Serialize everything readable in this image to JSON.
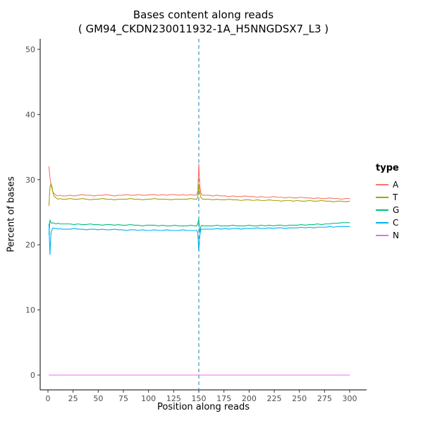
{
  "chart_data": {
    "type": "line",
    "title": "Bases content along reads",
    "subtitle": "( GM94_CKDN230011932-1A_H5NNGDSX7_L3 )",
    "xlabel": "Position along reads",
    "ylabel": "Percent of bases",
    "legend_title": "type",
    "legend_position": "right",
    "grid": false,
    "xlim": [
      0,
      300
    ],
    "ylim": [
      0,
      52
    ],
    "xticks": [
      0,
      25,
      50,
      75,
      100,
      125,
      150,
      175,
      200,
      225,
      250,
      275,
      300
    ],
    "yticks": [
      0,
      10,
      20,
      30,
      40,
      50
    ],
    "vline": {
      "x": 150,
      "style": "dashed",
      "color": "#4393C3"
    },
    "x": [
      1,
      2,
      3,
      4,
      5,
      6,
      8,
      10,
      12,
      14,
      18,
      22,
      26,
      30,
      34,
      38,
      42,
      46,
      50,
      54,
      58,
      62,
      66,
      70,
      74,
      78,
      82,
      86,
      90,
      94,
      98,
      102,
      106,
      110,
      114,
      118,
      122,
      126,
      130,
      134,
      138,
      142,
      146,
      148,
      149,
      150,
      151,
      152,
      153,
      154,
      156,
      160,
      164,
      168,
      172,
      176,
      180,
      184,
      188,
      192,
      196,
      200,
      204,
      208,
      212,
      216,
      220,
      224,
      228,
      232,
      236,
      240,
      244,
      248,
      252,
      256,
      260,
      264,
      268,
      272,
      276,
      280,
      284,
      288,
      292,
      296,
      300
    ],
    "series": [
      {
        "name": "A",
        "color": "#F8766D",
        "y": [
          32.0,
          30.3,
          29.2,
          28.6,
          28.1,
          27.9,
          27.6,
          27.5,
          27.6,
          27.5,
          27.5,
          27.6,
          27.5,
          27.6,
          27.7,
          27.6,
          27.6,
          27.5,
          27.6,
          27.6,
          27.7,
          27.6,
          27.5,
          27.6,
          27.6,
          27.7,
          27.6,
          27.6,
          27.7,
          27.6,
          27.6,
          27.7,
          27.7,
          27.6,
          27.7,
          27.6,
          27.7,
          27.7,
          27.6,
          27.7,
          27.6,
          27.7,
          27.6,
          27.7,
          28.2,
          32.4,
          29.0,
          28.0,
          27.7,
          27.6,
          27.6,
          27.6,
          27.5,
          27.6,
          27.5,
          27.5,
          27.4,
          27.5,
          27.4,
          27.4,
          27.5,
          27.4,
          27.4,
          27.3,
          27.4,
          27.3,
          27.3,
          27.4,
          27.3,
          27.3,
          27.2,
          27.3,
          27.2,
          27.2,
          27.3,
          27.2,
          27.2,
          27.1,
          27.2,
          27.1,
          27.1,
          27.2,
          27.1,
          27.1,
          27.0,
          27.1,
          27.1
        ]
      },
      {
        "name": "T",
        "color": "#A3A500",
        "y": [
          26.0,
          28.8,
          29.4,
          28.9,
          28.0,
          27.5,
          27.2,
          27.0,
          27.1,
          27.0,
          27.0,
          27.1,
          27.0,
          27.0,
          27.1,
          27.0,
          26.9,
          27.0,
          27.0,
          27.1,
          27.0,
          27.0,
          26.9,
          27.0,
          27.0,
          27.0,
          27.1,
          27.0,
          27.0,
          26.9,
          27.0,
          27.0,
          27.1,
          27.0,
          27.0,
          27.0,
          26.9,
          27.0,
          27.0,
          27.0,
          27.0,
          27.1,
          27.0,
          27.0,
          27.4,
          29.3,
          28.0,
          27.3,
          27.1,
          27.0,
          27.0,
          27.0,
          26.9,
          27.0,
          26.9,
          26.9,
          27.0,
          26.9,
          26.9,
          26.8,
          26.9,
          26.9,
          26.8,
          26.9,
          26.8,
          26.8,
          26.9,
          26.8,
          26.8,
          26.7,
          26.8,
          26.8,
          26.7,
          26.8,
          26.7,
          26.7,
          26.8,
          26.7,
          26.7,
          26.8,
          26.7,
          26.7,
          26.6,
          26.7,
          26.7,
          26.6,
          26.7
        ]
      },
      {
        "name": "G",
        "color": "#00BF7D",
        "y": [
          21.6,
          23.8,
          23.4,
          23.3,
          23.4,
          23.3,
          23.2,
          23.3,
          23.2,
          23.2,
          23.2,
          23.2,
          23.1,
          23.2,
          23.1,
          23.1,
          23.2,
          23.1,
          23.1,
          23.0,
          23.1,
          23.1,
          23.0,
          23.1,
          23.0,
          23.0,
          23.1,
          23.0,
          23.0,
          22.9,
          23.0,
          23.0,
          23.0,
          22.9,
          23.0,
          22.9,
          22.9,
          23.0,
          22.9,
          22.9,
          22.9,
          23.0,
          22.9,
          22.9,
          23.3,
          23.9,
          21.9,
          22.8,
          23.0,
          22.9,
          22.9,
          22.9,
          22.9,
          23.0,
          22.9,
          22.9,
          22.9,
          23.0,
          22.9,
          22.9,
          22.9,
          23.0,
          22.9,
          22.9,
          23.0,
          22.9,
          23.0,
          22.9,
          23.0,
          23.0,
          22.9,
          23.0,
          23.0,
          23.0,
          23.1,
          23.0,
          23.1,
          23.1,
          23.2,
          23.1,
          23.2,
          23.2,
          23.3,
          23.3,
          23.4,
          23.4,
          23.4
        ]
      },
      {
        "name": "C",
        "color": "#00B0F6",
        "y": [
          23.2,
          18.5,
          21.8,
          22.3,
          22.6,
          22.5,
          22.5,
          22.4,
          22.5,
          22.4,
          22.4,
          22.4,
          22.5,
          22.4,
          22.4,
          22.3,
          22.4,
          22.4,
          22.3,
          22.4,
          22.3,
          22.3,
          22.4,
          22.3,
          22.3,
          22.2,
          22.3,
          22.3,
          22.2,
          22.3,
          22.2,
          22.2,
          22.3,
          22.2,
          22.2,
          22.3,
          22.2,
          22.2,
          22.2,
          22.3,
          22.2,
          22.2,
          22.2,
          22.2,
          21.8,
          19.0,
          21.5,
          22.3,
          22.4,
          22.4,
          22.4,
          22.4,
          22.4,
          22.5,
          22.4,
          22.5,
          22.4,
          22.5,
          22.5,
          22.4,
          22.5,
          22.5,
          22.5,
          22.6,
          22.5,
          22.5,
          22.6,
          22.5,
          22.6,
          22.6,
          22.5,
          22.6,
          22.6,
          22.6,
          22.7,
          22.6,
          22.7,
          22.6,
          22.7,
          22.7,
          22.7,
          22.8,
          22.7,
          22.8,
          22.8,
          22.8,
          22.8
        ]
      },
      {
        "name": "N",
        "color": "#E76BF3",
        "y": [
          0,
          0,
          0,
          0,
          0,
          0,
          0,
          0,
          0,
          0,
          0,
          0,
          0,
          0,
          0,
          0,
          0,
          0,
          0,
          0,
          0,
          0,
          0,
          0,
          0,
          0,
          0,
          0,
          0,
          0,
          0,
          0,
          0,
          0,
          0,
          0,
          0,
          0,
          0,
          0,
          0,
          0,
          0,
          0,
          0,
          0,
          0,
          0,
          0,
          0,
          0,
          0,
          0,
          0,
          0,
          0,
          0,
          0,
          0,
          0,
          0,
          0,
          0,
          0,
          0,
          0,
          0,
          0,
          0,
          0,
          0,
          0,
          0,
          0,
          0,
          0,
          0,
          0,
          0,
          0,
          0,
          0,
          0,
          0,
          0,
          0,
          0
        ]
      }
    ]
  }
}
